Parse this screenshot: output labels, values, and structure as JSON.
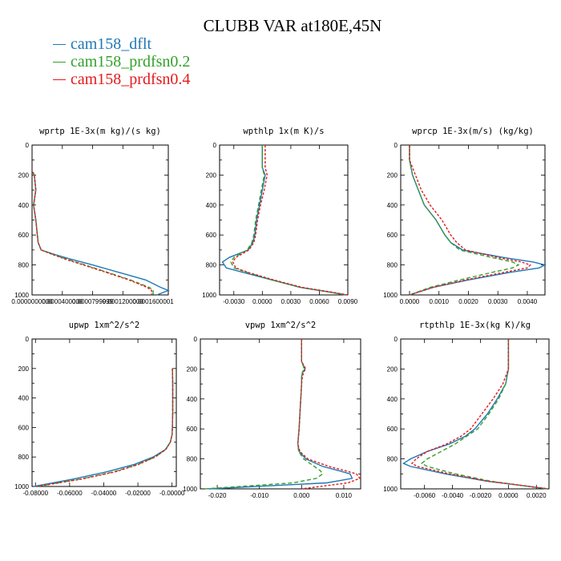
{
  "title": "CLUBB VAR at180E,45N",
  "colors": {
    "dflt": "#1f78b4",
    "prdfsn02": "#33a02c",
    "prdfsn04": "#e31a1c"
  },
  "legend": [
    {
      "label": "cam158_dflt",
      "color": "#1f78b4"
    },
    {
      "label": "cam158_prdfsn0.2",
      "color": "#33a02c"
    },
    {
      "label": "cam158_prdfsn0.4",
      "color": "#e31a1c"
    }
  ],
  "chart_data": [
    {
      "type": "line",
      "title": "wprtp  1E-3x(m kg)/(s kg)",
      "xlim": [
        0.0,
        0.00018
      ],
      "ylim": [
        1000,
        0
      ],
      "yticks": [
        "0",
        "200",
        "400",
        "600",
        "800",
        "1000"
      ],
      "xticks": [
        {
          "v": 0.0,
          "label": "0.0000000000"
        },
        {
          "v": 4e-05,
          "label": "0.0000400000"
        },
        {
          "v": 8e-05,
          "label": "0.0000799999"
        },
        {
          "v": 0.00012,
          "label": "0.0001200000"
        },
        {
          "v": 0.00016,
          "label": "0.0001600001"
        }
      ],
      "series": [
        {
          "name": "cam158_dflt",
          "y": [
            180,
            200,
            300,
            400,
            500,
            600,
            650,
            700,
            730,
            760,
            800,
            850,
            900,
            950,
            970,
            1000
          ],
          "x": [
            1e-06,
            3e-06,
            5e-06,
            2e-06,
            5e-06,
            7e-06,
            8e-06,
            1.2e-05,
            3e-05,
            5e-05,
            8e-05,
            0.000115,
            0.00015,
            0.00017,
            0.00018,
            0.000165
          ]
        },
        {
          "name": "cam158_prdfsn0.2",
          "y": [
            180,
            200,
            300,
            400,
            500,
            600,
            650,
            700,
            730,
            760,
            800,
            850,
            900,
            950,
            970,
            1000
          ],
          "x": [
            1e-06,
            3e-06,
            5e-06,
            2e-06,
            5e-06,
            7e-06,
            8e-06,
            1.2e-05,
            2.8e-05,
            4.5e-05,
            7e-05,
            0.0001,
            0.00013,
            0.000155,
            0.00016,
            0.00016
          ]
        },
        {
          "name": "cam158_prdfsn0.4",
          "y": [
            180,
            200,
            300,
            400,
            500,
            600,
            650,
            700,
            730,
            760,
            800,
            850,
            900,
            950,
            970,
            1000
          ],
          "x": [
            1e-06,
            3e-06,
            5e-06,
            2e-06,
            5e-06,
            7e-06,
            8e-06,
            1.2e-05,
            2.7e-05,
            4.3e-05,
            6.8e-05,
            9.8e-05,
            0.000128,
            0.000152,
            0.000158,
            0.000158
          ]
        }
      ]
    },
    {
      "type": "line",
      "title": "wpthlp  1x(m K)/s",
      "xlim": [
        -0.0045,
        0.009
      ],
      "ylim": [
        1000,
        0
      ],
      "yticks": [
        "0",
        "200",
        "400",
        "600",
        "800",
        "1000"
      ],
      "xticks": [
        {
          "v": -0.003,
          "label": "-0.0030"
        },
        {
          "v": 0.0,
          "label": "0.0000"
        },
        {
          "v": 0.003,
          "label": "0.0030"
        },
        {
          "v": 0.006,
          "label": "0.0060"
        },
        {
          "v": 0.009,
          "label": "0.0090"
        }
      ],
      "series": [
        {
          "name": "cam158_dflt",
          "y": [
            0,
            150,
            200,
            300,
            400,
            500,
            600,
            650,
            700,
            750,
            780,
            820,
            850,
            900,
            950,
            980,
            1000
          ],
          "x": [
            0.0,
            0.0,
            0.0003,
            0.0,
            -0.0003,
            -0.0006,
            -0.0008,
            -0.001,
            -0.0015,
            -0.0035,
            -0.0042,
            -0.0038,
            -0.002,
            0.001,
            0.004,
            0.007,
            0.0088
          ]
        },
        {
          "name": "cam158_prdfsn0.2",
          "y": [
            0,
            150,
            200,
            300,
            400,
            500,
            600,
            650,
            700,
            750,
            780,
            820,
            850,
            900,
            950,
            980,
            1000
          ],
          "x": [
            0.0,
            0.0,
            0.0002,
            -0.0001,
            -0.0004,
            -0.0007,
            -0.0009,
            -0.0011,
            -0.0016,
            -0.003,
            -0.0033,
            -0.003,
            -0.0016,
            0.001,
            0.004,
            0.007,
            0.0088
          ]
        },
        {
          "name": "cam158_prdfsn0.4",
          "y": [
            0,
            150,
            200,
            300,
            400,
            500,
            600,
            650,
            700,
            750,
            780,
            820,
            850,
            900,
            950,
            980,
            1000
          ],
          "x": [
            0.0003,
            0.0003,
            0.0005,
            0.0002,
            -0.0002,
            -0.0005,
            -0.0007,
            -0.0009,
            -0.0014,
            -0.0028,
            -0.0031,
            -0.0028,
            -0.0015,
            0.0012,
            0.0042,
            0.0072,
            0.009
          ]
        }
      ]
    },
    {
      "type": "line",
      "title": "wprcp  1E-3x(m/s) (kg/kg)",
      "xlim": [
        -0.0003,
        0.0046
      ],
      "ylim": [
        1000,
        0
      ],
      "yticks": [
        "0",
        "200",
        "400",
        "600",
        "800",
        "1000"
      ],
      "xticks": [
        {
          "v": 0.0,
          "label": "0.0000"
        },
        {
          "v": 0.001,
          "label": "0.0010"
        },
        {
          "v": 0.002,
          "label": "0.0020"
        },
        {
          "v": 0.003,
          "label": "0.0030"
        },
        {
          "v": 0.004,
          "label": "0.0040"
        }
      ],
      "series": [
        {
          "name": "cam158_dflt",
          "y": [
            0,
            100,
            200,
            300,
            400,
            500,
            600,
            650,
            700,
            750,
            780,
            800,
            820,
            850,
            900,
            950,
            1000
          ],
          "x": [
            0.0,
            0.0,
            0.0001,
            0.0003,
            0.0005,
            0.0009,
            0.0012,
            0.0014,
            0.0018,
            0.0032,
            0.0042,
            0.0046,
            0.0044,
            0.0034,
            0.002,
            0.0008,
            0.0
          ]
        },
        {
          "name": "cam158_prdfsn0.2",
          "y": [
            0,
            100,
            200,
            300,
            400,
            500,
            600,
            650,
            700,
            750,
            780,
            800,
            820,
            850,
            900,
            950,
            1000
          ],
          "x": [
            0.0,
            0.0,
            0.0001,
            0.0003,
            0.0005,
            0.0009,
            0.0012,
            0.0014,
            0.0017,
            0.0028,
            0.0035,
            0.0037,
            0.0035,
            0.0028,
            0.0017,
            0.0007,
            0.0
          ]
        },
        {
          "name": "cam158_prdfsn0.4",
          "y": [
            0,
            100,
            200,
            300,
            400,
            500,
            600,
            650,
            700,
            750,
            780,
            800,
            820,
            850,
            900,
            950,
            1000
          ],
          "x": [
            0.0,
            0.0,
            0.0002,
            0.0004,
            0.0007,
            0.0011,
            0.0014,
            0.0016,
            0.0019,
            0.003,
            0.0038,
            0.0041,
            0.004,
            0.0032,
            0.0019,
            0.0008,
            0.0
          ]
        }
      ]
    },
    {
      "type": "line",
      "title": "upwp  1xm^2/s^2",
      "xlim": [
        -0.082,
        0.0025
      ],
      "ylim": [
        1000,
        0
      ],
      "yticks": [
        "0",
        "200",
        "400",
        "600",
        "800",
        "1000"
      ],
      "xticks": [
        {
          "v": -0.08,
          "label": "-0.08000"
        },
        {
          "v": -0.06,
          "label": "-0.06000"
        },
        {
          "v": -0.04,
          "label": "-0.04000"
        },
        {
          "v": -0.02,
          "label": "-0.02000"
        },
        {
          "v": 0.0,
          "label": "-0.00000"
        }
      ],
      "series": [
        {
          "name": "cam158_dflt",
          "y": [
            200,
            250,
            300,
            400,
            500,
            600,
            650,
            700,
            750,
            800,
            850,
            900,
            950,
            1000
          ],
          "x": [
            0.0002,
            0.0003,
            0.0004,
            0.0004,
            0.0004,
            0.0002,
            0.0,
            -0.001,
            -0.004,
            -0.011,
            -0.022,
            -0.038,
            -0.058,
            -0.081
          ]
        },
        {
          "name": "cam158_prdfsn0.2",
          "y": [
            200,
            250,
            300,
            400,
            500,
            600,
            650,
            700,
            750,
            800,
            850,
            900,
            950,
            1000
          ],
          "x": [
            0.0002,
            0.0003,
            0.0004,
            0.0004,
            0.0004,
            0.0002,
            0.0,
            -0.001,
            -0.0038,
            -0.01,
            -0.02,
            -0.034,
            -0.054,
            -0.079
          ]
        },
        {
          "name": "cam158_prdfsn0.4",
          "y": [
            200,
            250,
            300,
            400,
            500,
            600,
            650,
            700,
            750,
            800,
            850,
            900,
            950,
            1000
          ],
          "x": [
            0.0002,
            0.0003,
            0.0004,
            0.0004,
            0.0004,
            0.0002,
            0.0,
            -0.001,
            -0.0037,
            -0.0098,
            -0.0195,
            -0.033,
            -0.053,
            -0.079
          ]
        }
      ]
    },
    {
      "type": "line",
      "title": "vpwp  1xm^2/s^2",
      "xlim": [
        -0.024,
        0.014
      ],
      "ylim": [
        1000,
        0
      ],
      "yticks": [
        "0",
        "200",
        "400",
        "600",
        "800",
        "1000"
      ],
      "xticks": [
        {
          "v": -0.02,
          "label": "-0.020"
        },
        {
          "v": -0.01,
          "label": "-0.010"
        },
        {
          "v": 0.0,
          "label": "0.000"
        },
        {
          "v": 0.01,
          "label": "0.010"
        }
      ],
      "series": [
        {
          "name": "cam158_dflt",
          "y": [
            0,
            150,
            180,
            200,
            220,
            250,
            300,
            400,
            500,
            600,
            700,
            750,
            800,
            850,
            880,
            900,
            930,
            960,
            1000
          ],
          "x": [
            0.0,
            0.0,
            0.0005,
            0.0008,
            0.0003,
            0.0,
            0.0,
            -0.0002,
            -0.0004,
            -0.0006,
            -0.0009,
            -0.0006,
            0.001,
            0.005,
            0.009,
            0.0115,
            0.012,
            0.006,
            -0.022
          ]
        },
        {
          "name": "cam158_prdfsn0.2",
          "y": [
            0,
            150,
            180,
            200,
            220,
            250,
            300,
            400,
            500,
            600,
            700,
            750,
            800,
            850,
            880,
            900,
            930,
            960,
            1000
          ],
          "x": [
            0.0,
            0.0,
            0.0004,
            0.0006,
            0.0002,
            0.0,
            0.0,
            -0.0002,
            -0.0004,
            -0.0006,
            -0.0009,
            -0.0007,
            0.0005,
            0.003,
            0.0045,
            0.005,
            0.0035,
            -0.002,
            -0.023
          ]
        },
        {
          "name": "cam158_prdfsn0.4",
          "y": [
            0,
            150,
            180,
            200,
            220,
            250,
            300,
            400,
            500,
            600,
            700,
            750,
            800,
            850,
            880,
            900,
            930,
            960,
            1000
          ],
          "x": [
            0.0,
            0.0,
            0.0006,
            0.001,
            0.0005,
            0.0002,
            0.0,
            -0.0002,
            -0.0004,
            -0.0006,
            -0.0009,
            -0.0004,
            0.0015,
            0.0065,
            0.0105,
            0.013,
            0.0138,
            0.011,
            0.0
          ]
        }
      ]
    },
    {
      "type": "line",
      "title": "rtpthlp  1E-3x(kg K)/kg",
      "xlim": [
        -0.0077,
        0.0029
      ],
      "ylim": [
        1000,
        0
      ],
      "yticks": [
        "0",
        "200",
        "400",
        "600",
        "800",
        "1000"
      ],
      "xticks": [
        {
          "v": -0.006,
          "label": "-0.0060"
        },
        {
          "v": -0.004,
          "label": "-0.0040"
        },
        {
          "v": -0.002,
          "label": "-0.0020"
        },
        {
          "v": 0.0,
          "label": "0.0000"
        },
        {
          "v": 0.002,
          "label": "0.0020"
        }
      ],
      "series": [
        {
          "name": "cam158_dflt",
          "y": [
            0,
            200,
            300,
            400,
            500,
            600,
            650,
            700,
            750,
            800,
            830,
            850,
            900,
            950,
            980,
            1000
          ],
          "x": [
            0.0,
            0.0,
            -0.0002,
            -0.0008,
            -0.0015,
            -0.0024,
            -0.0031,
            -0.0042,
            -0.0058,
            -0.007,
            -0.0075,
            -0.007,
            -0.0045,
            -0.0015,
            0.0012,
            0.0028
          ]
        },
        {
          "name": "cam158_prdfsn0.2",
          "y": [
            0,
            200,
            300,
            400,
            500,
            600,
            650,
            700,
            750,
            800,
            830,
            850,
            900,
            950,
            980,
            1000
          ],
          "x": [
            0.0,
            0.0,
            -0.0002,
            -0.0007,
            -0.0014,
            -0.0022,
            -0.003,
            -0.0038,
            -0.0048,
            -0.0058,
            -0.0062,
            -0.0058,
            -0.0038,
            -0.0012,
            0.0012,
            0.0028
          ]
        },
        {
          "name": "cam158_prdfsn0.4",
          "y": [
            0,
            200,
            300,
            400,
            500,
            600,
            650,
            700,
            750,
            800,
            830,
            850,
            900,
            950,
            980,
            1000
          ],
          "x": [
            0.0,
            0.0,
            -0.0004,
            -0.0011,
            -0.0019,
            -0.0027,
            -0.0034,
            -0.0044,
            -0.0058,
            -0.0066,
            -0.0069,
            -0.0065,
            -0.0042,
            -0.0014,
            0.0012,
            0.0028
          ]
        }
      ]
    }
  ]
}
